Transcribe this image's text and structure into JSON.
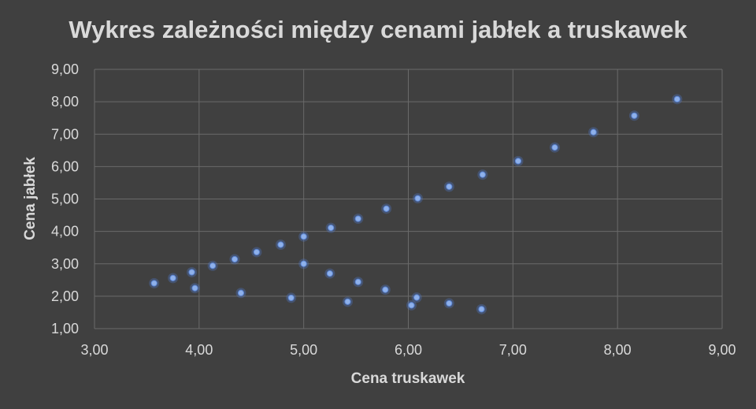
{
  "chart_data": {
    "type": "scatter",
    "title": "Wykres zależności między cenami jabłek a truskawek",
    "xlabel": "Cena truskawek",
    "ylabel": "Cena jabłek",
    "xlim": [
      3,
      9
    ],
    "ylim": [
      1,
      9
    ],
    "x_ticks": [
      "3,00",
      "4,00",
      "5,00",
      "6,00",
      "7,00",
      "8,00",
      "9,00"
    ],
    "y_ticks": [
      "1,00",
      "2,00",
      "3,00",
      "4,00",
      "5,00",
      "6,00",
      "7,00",
      "8,00",
      "9,00"
    ],
    "grid": true,
    "legend": "none",
    "marker_color": "#8fb1ea",
    "background_color": "#404040",
    "text_color": "#d9d9d9",
    "grid_color": "#6a6a6a",
    "points": [
      {
        "x": 3.57,
        "y": 2.4
      },
      {
        "x": 3.75,
        "y": 2.56
      },
      {
        "x": 3.93,
        "y": 2.74
      },
      {
        "x": 3.96,
        "y": 2.25
      },
      {
        "x": 4.13,
        "y": 2.94
      },
      {
        "x": 4.34,
        "y": 3.14
      },
      {
        "x": 4.4,
        "y": 2.1
      },
      {
        "x": 4.55,
        "y": 3.36
      },
      {
        "x": 4.78,
        "y": 3.59
      },
      {
        "x": 4.88,
        "y": 1.95
      },
      {
        "x": 5.0,
        "y": 3.84
      },
      {
        "x": 5.0,
        "y": 3.0
      },
      {
        "x": 5.26,
        "y": 4.11
      },
      {
        "x": 5.25,
        "y": 2.7
      },
      {
        "x": 5.42,
        "y": 1.83
      },
      {
        "x": 5.52,
        "y": 4.39
      },
      {
        "x": 5.52,
        "y": 2.44
      },
      {
        "x": 5.79,
        "y": 4.7
      },
      {
        "x": 5.78,
        "y": 2.2
      },
      {
        "x": 6.03,
        "y": 1.72
      },
      {
        "x": 6.08,
        "y": 1.96
      },
      {
        "x": 6.09,
        "y": 5.02
      },
      {
        "x": 6.39,
        "y": 5.38
      },
      {
        "x": 6.39,
        "y": 1.78
      },
      {
        "x": 6.7,
        "y": 1.6
      },
      {
        "x": 6.71,
        "y": 5.75
      },
      {
        "x": 7.05,
        "y": 6.17
      },
      {
        "x": 7.4,
        "y": 6.59
      },
      {
        "x": 7.77,
        "y": 7.06
      },
      {
        "x": 8.16,
        "y": 7.57
      },
      {
        "x": 8.57,
        "y": 8.08
      }
    ]
  }
}
